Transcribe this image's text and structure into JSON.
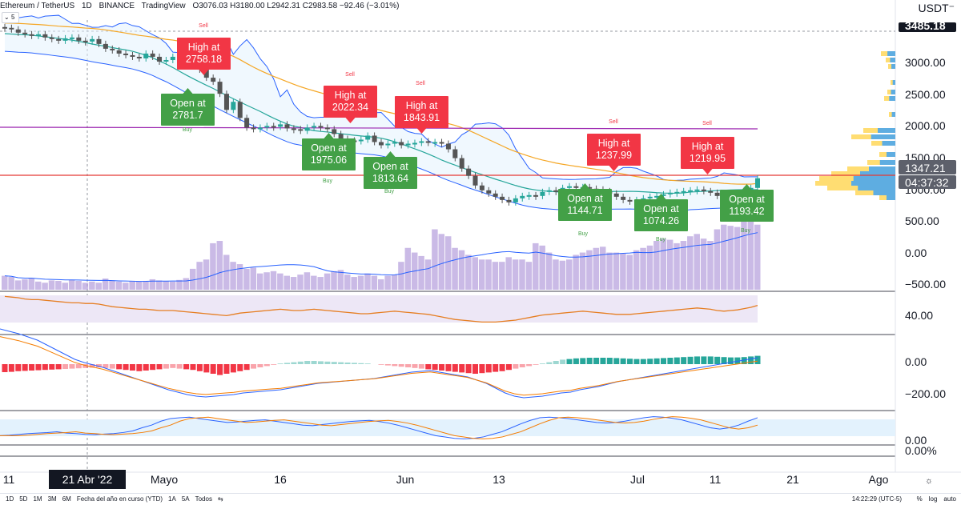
{
  "header": {
    "symbol": "Ethereum / TetherUS",
    "interval": "1D",
    "exchange": "BINANCE",
    "provider": "TradingView",
    "ohlc": "O3076.03 H3180.00 L2942.31 C2983.58 −92.46 (−3.01%)",
    "badge": "5"
  },
  "unit_label": "USDT⁻",
  "chart_data": {
    "type": "candlestick",
    "price_axis": {
      "ticks": [
        "3000.00",
        "2500.00",
        "2000.00",
        "1500.00",
        "1000.00",
        "500.00",
        "0.00",
        "−500.00"
      ],
      "tick_values": [
        3000,
        2500,
        2000,
        1500,
        1000,
        500,
        0,
        -500
      ],
      "price_tags": [
        {
          "label": "3485.18",
          "value": 3485.18,
          "color": "#131722"
        },
        {
          "label": "1347.21",
          "value": 1347.21,
          "color": "#5d606b"
        },
        {
          "label": "04:37:32",
          "value": 1200,
          "color": "#5d606b"
        }
      ]
    },
    "rsi_axis": {
      "ticks": [
        "40.00"
      ]
    },
    "macd_axis": {
      "ticks": [
        "0.00",
        "−200.00"
      ]
    },
    "stoch_axis": {
      "ticks": [
        "0.00"
      ]
    },
    "extra_axis": {
      "ticks": [
        "0.00%"
      ]
    },
    "time_axis": {
      "labels": [
        {
          "label": "11",
          "x": "Apr 11"
        },
        {
          "label": "21 Abr '22",
          "x": "Apr 21",
          "highlight": true
        },
        {
          "label": "Mayo",
          "x": "May 1"
        },
        {
          "label": "16",
          "x": "May 16"
        },
        {
          "label": "Jun",
          "x": "Jun 1"
        },
        {
          "label": "13",
          "x": "Jun 13"
        },
        {
          "label": "Jul",
          "x": "Jul 1"
        },
        {
          "label": "11",
          "x": "Jul 11"
        },
        {
          "label": "21",
          "x": "Jul 21"
        },
        {
          "label": "Ago",
          "x": "Aug 1"
        }
      ]
    },
    "closes": [
      3220,
      3200,
      3160,
      3140,
      3120,
      3140,
      3100,
      3080,
      3060,
      3090,
      3100,
      3060,
      3050,
      3080,
      3020,
      2960,
      2940,
      2900,
      2880,
      2860,
      2840,
      2900,
      2860,
      2800,
      2820,
      2860,
      2790,
      2770,
      2800,
      2700,
      2600,
      2550,
      2400,
      2200,
      2300,
      2100,
      1980,
      1960,
      1980,
      2000,
      1990,
      2020,
      1970,
      1960,
      1940,
      1980,
      2000,
      1980,
      1960,
      1900,
      1840,
      1820,
      1810,
      1830,
      1880,
      1800,
      1760,
      1780,
      1800,
      1760,
      1780,
      1790,
      1810,
      1790,
      1800,
      1780,
      1710,
      1600,
      1470,
      1380,
      1260,
      1200,
      1160,
      1120,
      1080,
      1050,
      1100,
      1130,
      1140,
      1130,
      1180,
      1200,
      1180,
      1230,
      1250,
      1230,
      1240,
      1220,
      1210,
      1190,
      1160,
      1120,
      1080,
      1060,
      1080,
      1100,
      1120,
      1130,
      1150,
      1170,
      1180,
      1190,
      1200,
      1210,
      1190,
      1170,
      1130,
      1100,
      1130,
      1160,
      1200,
      1230,
      1350
    ],
    "volume": [
      60,
      55,
      40,
      45,
      50,
      35,
      30,
      40,
      38,
      30,
      42,
      38,
      30,
      35,
      30,
      48,
      40,
      35,
      30,
      38,
      35,
      38,
      45,
      40,
      38,
      35,
      42,
      50,
      90,
      120,
      130,
      200,
      210,
      150,
      120,
      110,
      90,
      95,
      70,
      75,
      80,
      70,
      60,
      55,
      65,
      75,
      60,
      55,
      70,
      80,
      85,
      65,
      55,
      60,
      70,
      60,
      45,
      60,
      65,
      120,
      180,
      160,
      145,
      130,
      260,
      240,
      230,
      180,
      170,
      150,
      140,
      130,
      130,
      120,
      120,
      140,
      130,
      130,
      120,
      200,
      190,
      160,
      130,
      125,
      130,
      150,
      160,
      170,
      180,
      185,
      160,
      160,
      155,
      150,
      170,
      180,
      190,
      210,
      220,
      215,
      200,
      210,
      230,
      240,
      220,
      210,
      260,
      280,
      275,
      270,
      310,
      300,
      280
    ],
    "rsi": [
      52,
      51,
      50,
      48,
      47,
      47,
      46,
      45,
      44,
      43,
      42,
      42,
      41,
      41,
      40,
      38,
      36,
      35,
      34,
      33,
      32,
      32,
      31,
      30,
      30,
      30,
      29,
      28,
      27,
      26,
      25,
      24,
      23,
      22,
      24,
      26,
      27,
      28,
      29,
      30,
      31,
      32,
      31,
      30,
      30,
      31,
      32,
      31,
      30,
      29,
      28,
      27,
      26,
      25,
      25,
      26,
      27,
      28,
      29,
      28,
      27,
      26,
      25,
      24,
      22,
      20,
      18,
      16,
      15,
      14,
      13,
      12,
      12,
      12,
      13,
      14,
      15,
      17,
      19,
      21,
      23,
      24,
      25,
      26,
      27,
      28,
      29,
      28,
      27,
      26,
      25,
      24,
      24,
      24,
      25,
      26,
      27,
      28,
      29,
      30,
      31,
      32,
      33,
      34,
      33,
      32,
      30,
      29,
      30,
      31,
      33,
      35,
      38
    ],
    "macd_hist": [
      -25,
      -24,
      -22,
      -21,
      -20,
      -19,
      -18,
      -17,
      -16,
      -15,
      -14,
      -13,
      -12,
      -11,
      -10,
      -12,
      -14,
      -16,
      -18,
      -20,
      -22,
      -20,
      -18,
      -16,
      -14,
      -12,
      -14,
      -16,
      -18,
      -22,
      -26,
      -30,
      -34,
      -30,
      -26,
      -22,
      -18,
      -14,
      -10,
      -6,
      -2,
      2,
      4,
      6,
      8,
      10,
      10,
      9,
      8,
      7,
      6,
      5,
      4,
      3,
      2,
      0,
      -2,
      -4,
      -6,
      -8,
      -10,
      -12,
      -14,
      -16,
      -18,
      -20,
      -22,
      -24,
      -26,
      -28,
      -30,
      -28,
      -26,
      -24,
      -22,
      -18,
      -14,
      -10,
      -6,
      -2,
      2,
      6,
      10,
      14,
      16,
      18,
      19,
      20,
      20,
      20,
      20,
      19,
      18,
      17,
      16,
      16,
      17,
      18,
      19,
      20,
      21,
      22,
      23,
      24,
      24,
      24,
      23,
      22,
      21,
      21,
      22,
      24,
      26,
      28
    ],
    "macd_line": [
      220,
      205,
      190,
      170,
      150,
      120,
      90,
      60,
      30,
      10,
      -5,
      -20,
      -40,
      -60,
      -80,
      -100,
      -120,
      -140,
      -160,
      -175,
      -190,
      -200,
      -205,
      -200,
      -195,
      -190,
      -180,
      -175,
      -170,
      -165,
      -160,
      -150,
      -140,
      -130,
      -120,
      -115,
      -110,
      -105,
      -100,
      -95,
      -90,
      -80,
      -70,
      -60,
      -50,
      -45,
      -40,
      -50,
      -60,
      -70,
      -80,
      -100,
      -120,
      -150,
      -180,
      -200,
      -210,
      -205,
      -200,
      -190,
      -180,
      -175,
      -160,
      -150,
      -140,
      -125,
      -110,
      -100,
      -90,
      -80,
      -70,
      -60,
      -50,
      -40,
      -30,
      -20,
      -10,
      0,
      10,
      20,
      30,
      40
    ],
    "stoch_k": [
      20,
      22,
      25,
      28,
      30,
      32,
      35,
      30,
      28,
      25,
      24,
      26,
      28,
      32,
      38,
      50,
      60,
      75,
      85,
      88,
      90,
      85,
      80,
      75,
      70,
      72,
      75,
      78,
      80,
      75,
      70,
      65,
      60,
      58,
      62,
      66,
      70,
      74,
      76,
      78,
      74,
      68,
      60,
      50,
      40,
      30,
      20,
      15,
      10,
      8,
      10,
      15,
      25,
      35,
      50,
      65,
      78,
      88,
      90,
      88,
      85,
      80,
      75,
      70,
      68,
      70,
      75,
      82,
      88,
      92,
      90,
      86,
      80,
      70,
      60,
      50,
      45,
      50,
      60,
      75,
      88
    ],
    "signals": [
      {
        "type": "sell",
        "text": "Sell"
      },
      {
        "type": "sell",
        "text": "Sell"
      },
      {
        "type": "sell",
        "text": "Sell"
      },
      {
        "type": "sell",
        "text": "Sell"
      },
      {
        "type": "sell",
        "text": "Sell"
      },
      {
        "type": "buy",
        "text": "Buy"
      },
      {
        "type": "buy",
        "text": "Buy"
      },
      {
        "type": "buy",
        "text": "Buy"
      },
      {
        "type": "buy",
        "text": "Buy"
      },
      {
        "type": "buy",
        "text": "Buy"
      },
      {
        "type": "buy",
        "text": "Buy"
      }
    ],
    "annotations": [
      {
        "kind": "high",
        "lines": [
          "High at",
          "2758.18"
        ]
      },
      {
        "kind": "high",
        "lines": [
          "High at",
          "2022.34"
        ]
      },
      {
        "kind": "high",
        "lines": [
          "High at",
          "1843.91"
        ]
      },
      {
        "kind": "high",
        "lines": [
          "High at",
          "1237.99"
        ]
      },
      {
        "kind": "high",
        "lines": [
          "High at",
          "1219.95"
        ]
      },
      {
        "kind": "open",
        "lines": [
          "Open at",
          "2781.7"
        ]
      },
      {
        "kind": "open",
        "lines": [
          "Open at",
          "1975.06"
        ]
      },
      {
        "kind": "open",
        "lines": [
          "Open at",
          "1813.64"
        ]
      },
      {
        "kind": "open",
        "lines": [
          "Open at",
          "1144.71"
        ]
      },
      {
        "kind": "open",
        "lines": [
          "Open at",
          "1074.26"
        ]
      },
      {
        "kind": "open",
        "lines": [
          "Open at",
          "1193.42"
        ]
      }
    ],
    "colors": {
      "up": "#26a69a",
      "down": "#555555",
      "high_label": "#f23645",
      "open_label": "#43a047",
      "red_line": "#e53935",
      "purple": "#9c27b0",
      "orange": "#f5a623",
      "teal": "#26a69a",
      "band": "#2962ff",
      "volume": "#b39ddb",
      "rsi_fill": "#ede7f6",
      "rsi_line": "#e67e22",
      "macd_pos": "#26a69a",
      "macd_neg": "#f23645",
      "stoch_k": "#2962ff",
      "stoch_d": "#f57c00",
      "stoch_fill": "#e3f2fd"
    }
  },
  "bottom_bar": {
    "ranges": [
      "1D",
      "5D",
      "1M",
      "3M",
      "6M",
      "Fecha del año en curso (YTD)",
      "1A",
      "5A",
      "Todos"
    ],
    "clock": "14:22:29 (UTC-5)",
    "options": [
      "%",
      "log",
      "auto"
    ]
  }
}
